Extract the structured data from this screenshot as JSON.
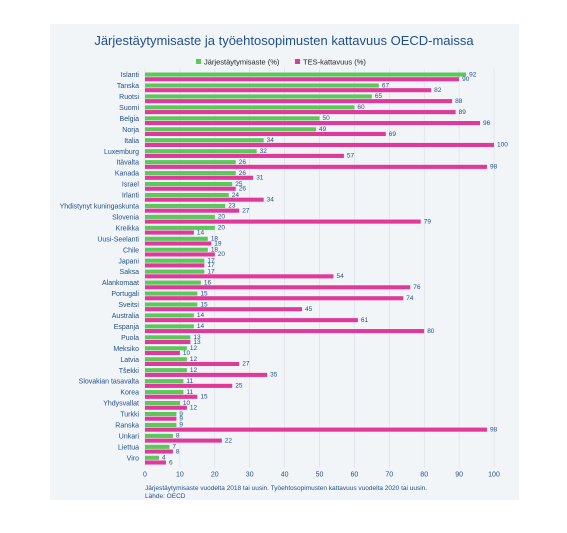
{
  "chart_data": {
    "type": "bar",
    "orientation": "horizontal",
    "title": "Järjestäytymisaste ja työehtosopimusten kattavuus OECD-maissa",
    "categories": [
      "Islanti",
      "Tanska",
      "Ruotsi",
      "Suomi",
      "Belgia",
      "Norja",
      "Italia",
      "Luxemburg",
      "Itävalta",
      "Kanada",
      "Israel",
      "Irlanti",
      "Yhdistynyt kuningaskunta",
      "Slovenia",
      "Kreikka",
      "Uusi-Seelanti",
      "Chile",
      "Japani",
      "Saksa",
      "Alankomaat",
      "Portugali",
      "Sveitsi",
      "Australia",
      "Espanja",
      "Puola",
      "Meksiko",
      "Latvia",
      "Tšekki",
      "Slovakian tasavalta",
      "Korea",
      "Yhdysvallat",
      "Turkki",
      "Ranska",
      "Unkari",
      "Liettua",
      "Viro"
    ],
    "series": [
      {
        "name": "Järjestäytymisaste (%)",
        "color": "#5cc85a",
        "values": [
          92,
          67,
          65,
          60,
          50,
          49,
          34,
          32,
          26,
          26,
          25,
          24,
          23,
          20,
          20,
          18,
          18,
          17,
          17,
          16,
          15,
          15,
          14,
          14,
          13,
          12,
          12,
          12,
          11,
          11,
          10,
          9,
          9,
          8,
          7,
          4
        ]
      },
      {
        "name": "TES-kattavuus (%)",
        "color": "#e0399a",
        "values": [
          90,
          82,
          88,
          89,
          96,
          69,
          100,
          57,
          98,
          31,
          26,
          34,
          27,
          79,
          14,
          19,
          20,
          17,
          54,
          76,
          74,
          45,
          61,
          80,
          13,
          10,
          27,
          35,
          25,
          15,
          12,
          9,
          98,
          22,
          8,
          6
        ]
      }
    ],
    "xlim": [
      0,
      100
    ],
    "xticks": [
      "0",
      "10",
      "20",
      "30",
      "40",
      "50",
      "60",
      "70",
      "80",
      "90",
      "100"
    ],
    "grid": true,
    "legend": "top-center",
    "note_lines": [
      "Järjestäytymisaste vuodelta 2018 tai uusin. Työehtosopimusten kattavuus vuodelta 2020 tai uusin.",
      "Lähde: OECD"
    ]
  }
}
